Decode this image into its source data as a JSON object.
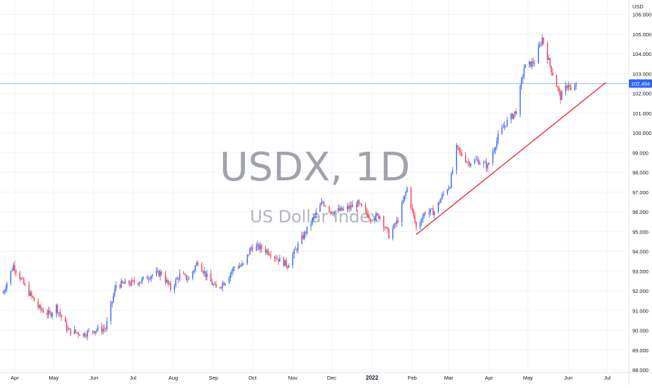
{
  "watermark": {
    "symbol": "USDX, 1D",
    "name": "US Dollar Index"
  },
  "currency_label": "USD",
  "colors": {
    "up": "#2962ff",
    "down": "#f23645",
    "trendline": "#f23645",
    "price_line": "#7eb6f5",
    "price_tag_bg": "#2962ff",
    "grid": "#f0f3fa"
  },
  "chart_data": {
    "type": "candlestick",
    "title": "",
    "ylim": [
      88.0,
      106.0
    ],
    "y_ticks": [
      "88.000",
      "89.000",
      "90.000",
      "91.000",
      "92.000",
      "93.000",
      "94.000",
      "95.000",
      "96.000",
      "97.000",
      "98.000",
      "99.000",
      "100.000",
      "101.000",
      "102.000",
      "103.000",
      "104.000",
      "105.000",
      "106.000"
    ],
    "x_ticks": [
      {
        "label": "Apr",
        "date": "2021-04-01"
      },
      {
        "label": "May",
        "date": "2021-05-01"
      },
      {
        "label": "Jun",
        "date": "2021-06-01"
      },
      {
        "label": "Jul",
        "date": "2021-07-01"
      },
      {
        "label": "Aug",
        "date": "2021-08-01"
      },
      {
        "label": "Sep",
        "date": "2021-09-01"
      },
      {
        "label": "Oct",
        "date": "2021-10-01"
      },
      {
        "label": "Nov",
        "date": "2021-11-01"
      },
      {
        "label": "Dec",
        "date": "2021-12-01"
      },
      {
        "label": "2022",
        "date": "2022-01-01"
      },
      {
        "label": "Feb",
        "date": "2022-02-01"
      },
      {
        "label": "Mar",
        "date": "2022-03-01"
      },
      {
        "label": "Apr",
        "date": "2022-04-01"
      },
      {
        "label": "May",
        "date": "2022-05-01"
      },
      {
        "label": "Jun",
        "date": "2022-06-01"
      },
      {
        "label": "Jul",
        "date": "2022-07-01"
      }
    ],
    "last_price": 102.494,
    "last_price_label": "102.494",
    "trendline": {
      "start": {
        "date": "2022-02-04",
        "value": 94.85
      },
      "end": {
        "date": "2022-06-30",
        "value": 102.55
      }
    },
    "series_anchors": [
      [
        "2021-03-23",
        91.9
      ],
      [
        "2021-03-31",
        93.3
      ],
      [
        "2021-04-09",
        92.2
      ],
      [
        "2021-04-20",
        91.1
      ],
      [
        "2021-04-28",
        90.8
      ],
      [
        "2021-05-03",
        91.2
      ],
      [
        "2021-05-12",
        90.0
      ],
      [
        "2021-05-24",
        89.8
      ],
      [
        "2021-05-31",
        90.0
      ],
      [
        "2021-06-10",
        90.1
      ],
      [
        "2021-06-18",
        92.3
      ],
      [
        "2021-06-30",
        92.4
      ],
      [
        "2021-07-07",
        92.5
      ],
      [
        "2021-07-15",
        92.8
      ],
      [
        "2021-07-23",
        92.9
      ],
      [
        "2021-07-30",
        92.1
      ],
      [
        "2021-08-06",
        92.8
      ],
      [
        "2021-08-13",
        92.6
      ],
      [
        "2021-08-20",
        93.5
      ],
      [
        "2021-08-27",
        92.7
      ],
      [
        "2021-09-03",
        92.1
      ],
      [
        "2021-09-10",
        92.5
      ],
      [
        "2021-09-17",
        93.2
      ],
      [
        "2021-09-24",
        93.3
      ],
      [
        "2021-09-30",
        94.2
      ],
      [
        "2021-10-06",
        94.2
      ],
      [
        "2021-10-13",
        94.0
      ],
      [
        "2021-10-21",
        93.6
      ],
      [
        "2021-10-28",
        93.3
      ],
      [
        "2021-11-05",
        94.3
      ],
      [
        "2021-11-12",
        95.1
      ],
      [
        "2021-11-24",
        96.5
      ],
      [
        "2021-12-01",
        96.0
      ],
      [
        "2021-12-10",
        96.1
      ],
      [
        "2021-12-21",
        96.4
      ],
      [
        "2021-12-31",
        95.7
      ],
      [
        "2022-01-07",
        95.8
      ],
      [
        "2022-01-14",
        94.8
      ],
      [
        "2022-01-21",
        95.6
      ],
      [
        "2022-01-28",
        97.2
      ],
      [
        "2022-02-04",
        95.2
      ],
      [
        "2022-02-11",
        96.0
      ],
      [
        "2022-02-18",
        96.0
      ],
      [
        "2022-02-24",
        96.8
      ],
      [
        "2022-03-02",
        97.4
      ],
      [
        "2022-03-07",
        99.2
      ],
      [
        "2022-03-16",
        98.5
      ],
      [
        "2022-03-23",
        98.6
      ],
      [
        "2022-03-31",
        98.3
      ],
      [
        "2022-04-08",
        99.8
      ],
      [
        "2022-04-14",
        100.5
      ],
      [
        "2022-04-22",
        101.1
      ],
      [
        "2022-04-28",
        103.3
      ],
      [
        "2022-05-06",
        103.6
      ],
      [
        "2022-05-12",
        104.8
      ],
      [
        "2022-05-18",
        103.4
      ],
      [
        "2022-05-26",
        101.8
      ],
      [
        "2022-06-01",
        102.5
      ],
      [
        "2022-06-03",
        102.1
      ],
      [
        "2022-06-07",
        102.3
      ]
    ]
  }
}
